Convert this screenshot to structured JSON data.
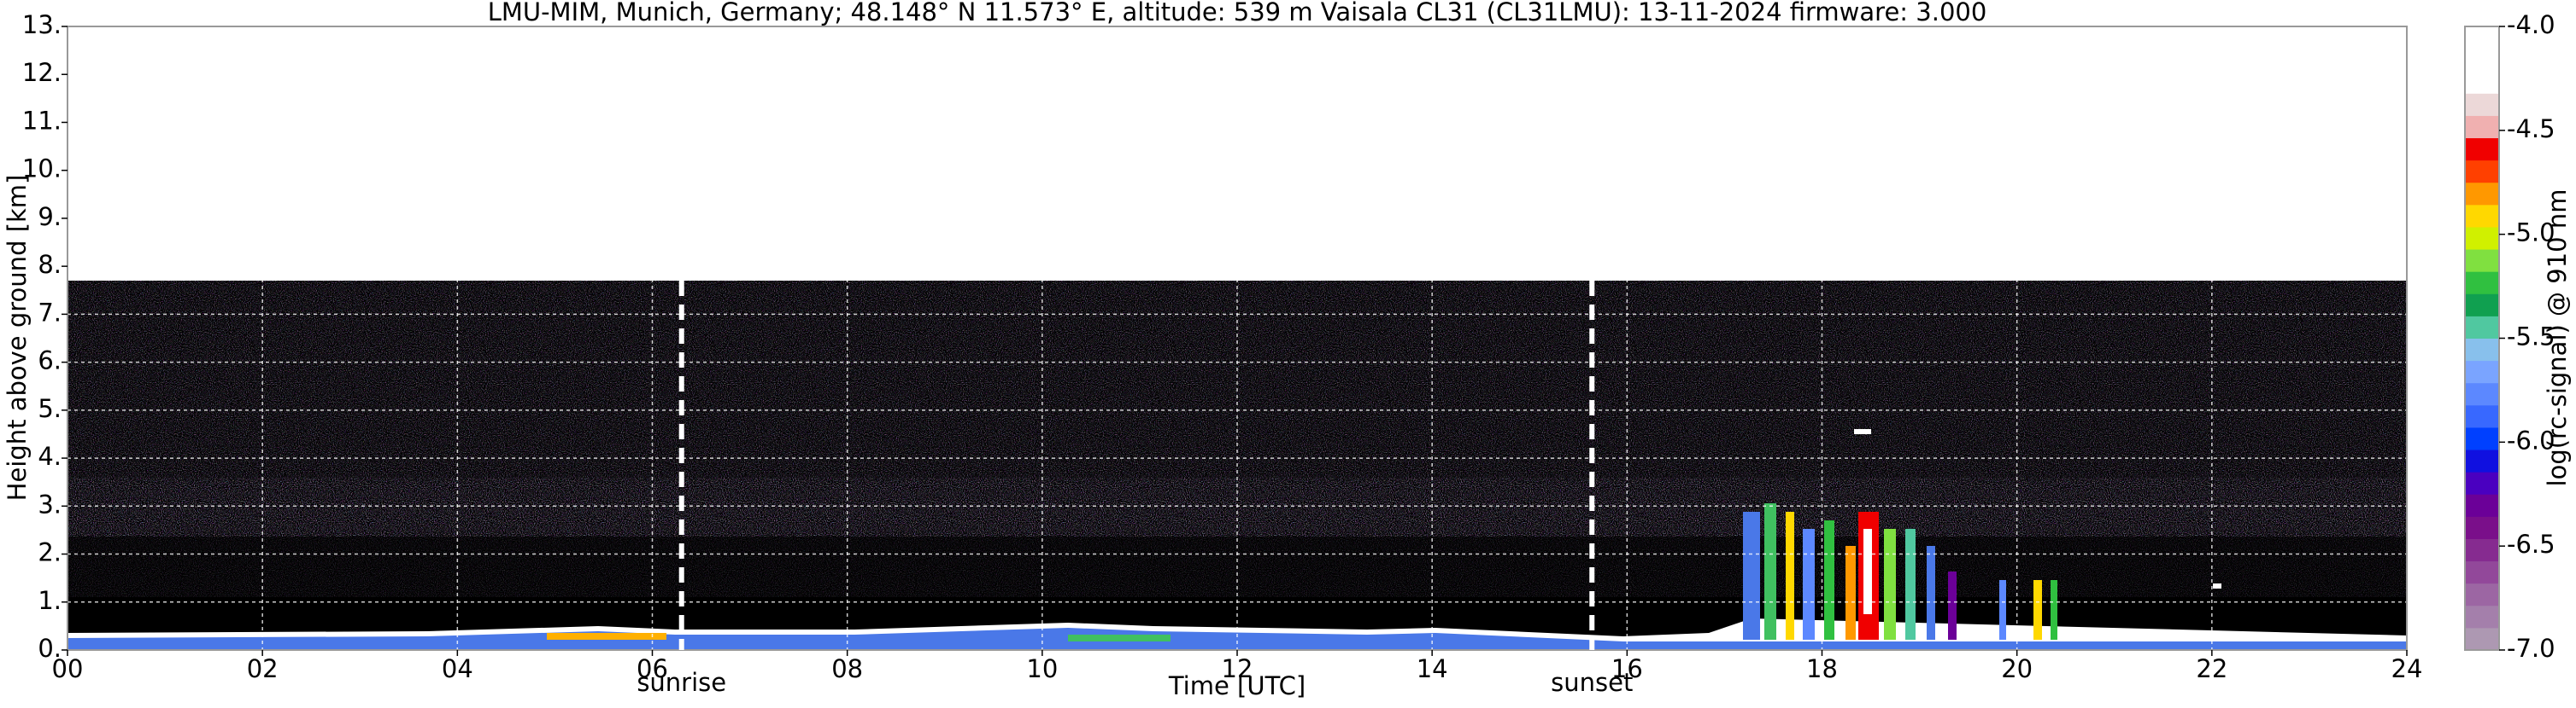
{
  "chart_data": {
    "type": "heatmap",
    "title": "LMU-MIM, Munich, Germany; 48.148° N 11.573° E, altitude: 539 m    Vaisala CL31 (CL31LMU): 13-11-2024    firmware: 3.000",
    "x_label": "Time [UTC]",
    "y_label": "Height above ground [km]",
    "xlim": [
      0,
      24
    ],
    "xticks": [
      {
        "value": 0,
        "label": "00"
      },
      {
        "value": 2,
        "label": "02"
      },
      {
        "value": 4,
        "label": "04"
      },
      {
        "value": 6,
        "label": "06"
      },
      {
        "value": 8,
        "label": "08"
      },
      {
        "value": 10,
        "label": "10"
      },
      {
        "value": 12,
        "label": "12"
      },
      {
        "value": 14,
        "label": "14"
      },
      {
        "value": 16,
        "label": "16"
      },
      {
        "value": 18,
        "label": "18"
      },
      {
        "value": 20,
        "label": "20"
      },
      {
        "value": 22,
        "label": "22"
      },
      {
        "value": 24,
        "label": "24"
      }
    ],
    "ylim": [
      0,
      13
    ],
    "yticks": [
      {
        "value": 0,
        "label": "0."
      },
      {
        "value": 1,
        "label": "1."
      },
      {
        "value": 2,
        "label": "2."
      },
      {
        "value": 3,
        "label": "3."
      },
      {
        "value": 4,
        "label": "4."
      },
      {
        "value": 5,
        "label": "5."
      },
      {
        "value": 6,
        "label": "6."
      },
      {
        "value": 7,
        "label": "7."
      },
      {
        "value": 8,
        "label": "8."
      },
      {
        "value": 9,
        "label": "9."
      },
      {
        "value": 10,
        "label": "10."
      },
      {
        "value": 11,
        "label": "11."
      },
      {
        "value": 12,
        "label": "12."
      },
      {
        "value": 13,
        "label": "13."
      }
    ],
    "grid": true,
    "annotations": [
      {
        "label": "sunrise",
        "x": 6.3
      },
      {
        "label": "sunset",
        "x": 15.64
      }
    ],
    "colorbar": {
      "label": "log(rc-signal) @ 910 nm",
      "lim": [
        -7,
        -4
      ],
      "ticks": [
        {
          "value": -4,
          "label": "-4.0"
        },
        {
          "value": -4.5,
          "label": "-4.5"
        },
        {
          "value": -5,
          "label": "-5.0"
        },
        {
          "value": -5.5,
          "label": "-5.5"
        },
        {
          "value": -6,
          "label": "-6.0"
        },
        {
          "value": -6.5,
          "label": "-6.5"
        },
        {
          "value": -7,
          "label": "-7.0"
        }
      ],
      "colors": [
        "#ad98b2",
        "#a47fab",
        "#9c66a3",
        "#92489a",
        "#862b90",
        "#7a0f8a",
        "#6b0098",
        "#4a00c0",
        "#1010e0",
        "#0040ff",
        "#3868ff",
        "#5c88ff",
        "#7aa4ff",
        "#88c0ec",
        "#50c8a0",
        "#10a050",
        "#30c040",
        "#80e040",
        "#d0f000",
        "#ffd800",
        "#ff9800",
        "#ff4000",
        "#f00000",
        "#f0b0b0",
        "#ecd8d8",
        "#ffffff",
        "#ffffff",
        "#ffffff"
      ]
    }
  }
}
